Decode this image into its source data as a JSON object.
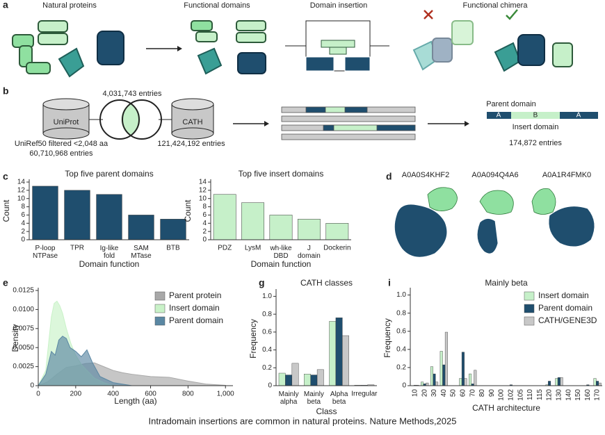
{
  "panel_labels": {
    "a": "a",
    "b": "b",
    "c": "c",
    "d": "d",
    "e": "e",
    "g": "g",
    "i": "i"
  },
  "panel_a": {
    "steps": [
      "Natural proteins",
      "Functional domains",
      "Domain insertion",
      "Functional chimera"
    ]
  },
  "panel_b": {
    "sources": [
      "UniProt",
      "CATH"
    ],
    "overlap": "4,031,743 entries",
    "uniprot_note": "UniRef50 filtered <2,048 aa",
    "uniprot_count": "60,710,968 entries",
    "cath_count": "121,424,192 entries",
    "parent_label": "Parent domain",
    "segments": [
      "A",
      "B",
      "A"
    ],
    "insert_label": "Insert domain",
    "result_count": "174,872 entries"
  },
  "panel_d": {
    "ids": [
      "A0A0S4KHF2",
      "A0A094Q4A6",
      "A0A1R4FMK0"
    ]
  },
  "chart_data": [
    {
      "type": "bar",
      "title": "Top five parent domains",
      "categories": [
        "P-loop\nNTPase",
        "TPR",
        "Ig-like\nfold",
        "SAM\nMTase",
        "BTB"
      ],
      "values": [
        13,
        12,
        11,
        6,
        5
      ],
      "color": "#1f4e6e",
      "xlabel": "Domain function",
      "ylabel": "Count",
      "ylim": [
        0,
        14
      ],
      "yticks": [
        0,
        2,
        4,
        6,
        8,
        10,
        12,
        14
      ]
    },
    {
      "type": "bar",
      "title": "Top five insert domains",
      "categories": [
        "PDZ",
        "LysM",
        "wh-like\nDBD",
        "J\ndomain",
        "Dockerin"
      ],
      "values": [
        11,
        9,
        6,
        5,
        4
      ],
      "color": "#c6f0c9",
      "xlabel": "Domain function",
      "ylabel": "Count",
      "ylim": [
        0,
        14
      ],
      "yticks": [
        0,
        2,
        4,
        6,
        8,
        10,
        12,
        14
      ]
    },
    {
      "type": "area",
      "xlabel": "Length (aa)",
      "ylabel": "Density",
      "legend": "upper right",
      "xlim": [
        0,
        1040
      ],
      "xticks": [
        0,
        200,
        400,
        600,
        800,
        {
          "value": 1000,
          "label": "1,000"
        }
      ],
      "ylim": [
        0,
        0.0125
      ],
      "yticks": [
        0,
        0.0025,
        {
          "value": 0.005,
          "label": "0.0050"
        },
        0.0075,
        {
          "value": 0.01,
          "label": "0.0100"
        },
        0.0125
      ],
      "series": [
        {
          "name": "Parent protein",
          "color": "#a8a8a8",
          "x": [
            0,
            50,
            100,
            150,
            200,
            250,
            300,
            350,
            400,
            450,
            500,
            600,
            700,
            800,
            900,
            1000
          ],
          "values": [
            0,
            0.0005,
            0.0015,
            0.0024,
            0.0026,
            0.0029,
            0.003,
            0.0025,
            0.002,
            0.0017,
            0.0015,
            0.0012,
            0.0011,
            0.0006,
            0.0002,
            5e-05
          ]
        },
        {
          "name": "Insert domain",
          "color": "#c9f2c8",
          "x": [
            0,
            40,
            70,
            85,
            100,
            115,
            130,
            150,
            175,
            200,
            230,
            260,
            300,
            350,
            400
          ],
          "values": [
            0,
            0.002,
            0.009,
            0.0108,
            0.0111,
            0.0105,
            0.0095,
            0.0075,
            0.0055,
            0.004,
            0.0028,
            0.002,
            0.001,
            0.0004,
            0
          ]
        },
        {
          "name": "Parent domain",
          "color": "#5a87a3",
          "x": [
            0,
            40,
            70,
            90,
            110,
            130,
            150,
            170,
            200,
            230,
            260,
            290,
            330,
            400,
            500
          ],
          "values": [
            0,
            0.0015,
            0.0045,
            0.004,
            0.006,
            0.0065,
            0.0062,
            0.005,
            0.0045,
            0.0038,
            0.0047,
            0.003,
            0.0012,
            0.0004,
            0
          ]
        }
      ]
    },
    {
      "type": "grouped_bar",
      "title": "CATH classes",
      "xlabel": "Class",
      "ylabel": "Frequency",
      "categories": [
        "Mainly\nalpha",
        "Mainly\nbeta",
        "Alpha\nbeta",
        "Irregular"
      ],
      "ylim": [
        0,
        1.05
      ],
      "yticks": [
        0,
        0.2,
        0.4,
        0.6,
        0.8,
        {
          "value": 1,
          "label": "1.0"
        }
      ],
      "series": [
        {
          "color": "#c6f0c9",
          "values": [
            0.14,
            0.13,
            0.72,
            0.005
          ]
        },
        {
          "color": "#1f4e6e",
          "values": [
            0.12,
            0.12,
            0.76,
            0.005
          ]
        },
        {
          "color": "#c8c8c8",
          "values": [
            0.25,
            0.18,
            0.56,
            0.01
          ]
        }
      ]
    },
    {
      "type": "grouped_bar",
      "title": "Mainly beta",
      "xlabel": "CATH architecture",
      "ylabel": "Frequency",
      "legend": "upper right",
      "xtick_rotation": -90,
      "categories": [
        "10",
        "20",
        "30",
        "40",
        "50",
        "60",
        "70",
        "80",
        "90",
        "100",
        "102",
        "105",
        "110",
        "115",
        "120",
        "130",
        "140",
        "150",
        "160",
        "170"
      ],
      "ylim": [
        0,
        1.05
      ],
      "yticks": [
        0,
        0.2,
        0.4,
        0.6,
        0.8,
        {
          "value": 1,
          "label": "1.0"
        }
      ],
      "series": [
        {
          "name": "Insert domain",
          "color": "#c6f0c9",
          "values": [
            0,
            0.04,
            0.21,
            0.38,
            0,
            0.08,
            0.13,
            0,
            0,
            0,
            0,
            0,
            0,
            0,
            0.01,
            0.08,
            0,
            0,
            0,
            0.08
          ]
        },
        {
          "name": "Parent domain",
          "color": "#1f4e6e",
          "values": [
            0.005,
            0.02,
            0.13,
            0.23,
            0,
            0.37,
            0.02,
            0,
            0,
            0,
            0.01,
            0,
            0,
            0,
            0.05,
            0.09,
            0,
            0,
            0.01,
            0.05
          ]
        },
        {
          "name": "CATH/GENE3D",
          "color": "#c8c8c8",
          "values": [
            0.005,
            0.03,
            0.04,
            0.59,
            0,
            0.08,
            0.17,
            0,
            0,
            0,
            0,
            0,
            0,
            0,
            0,
            0.09,
            0,
            0,
            0,
            0.03
          ]
        }
      ]
    }
  ],
  "caption": "Intradomain insertions are common in natural proteins. Nature Methods,2025"
}
